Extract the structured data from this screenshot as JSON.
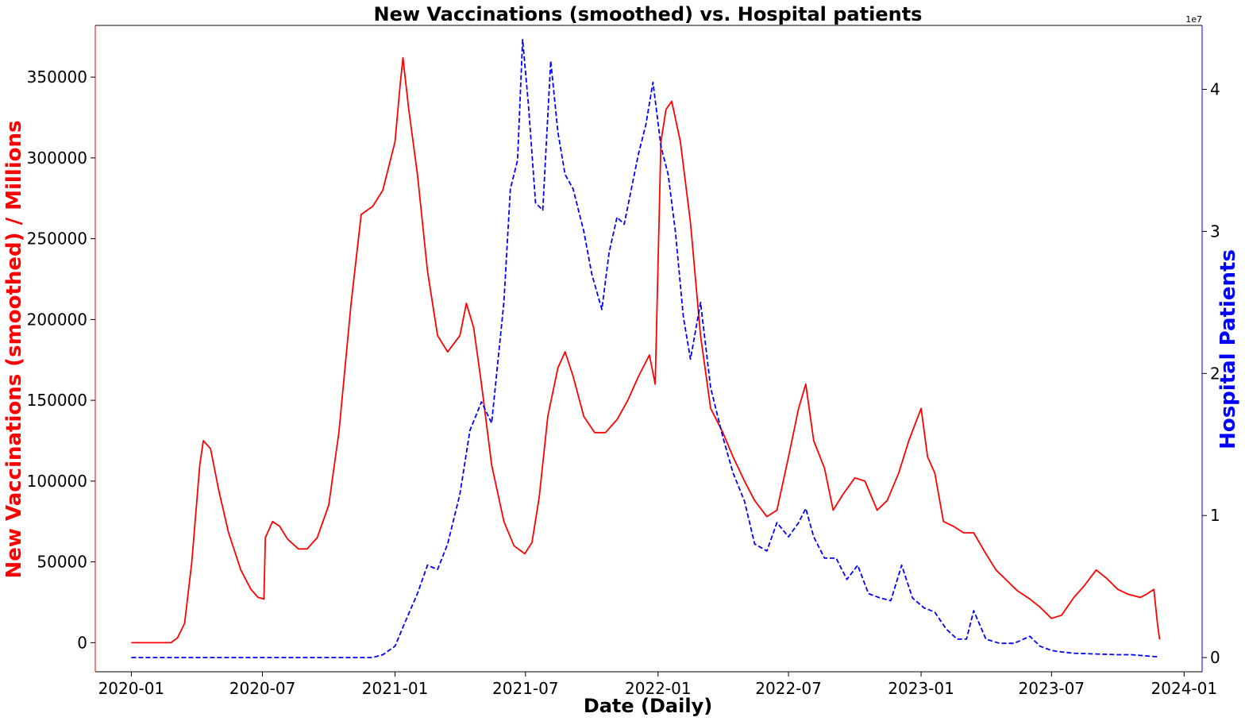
{
  "chart_data": {
    "type": "line",
    "title": "New Vaccinations (smoothed) vs. Hospital patients",
    "xlabel": "Date (Daily)",
    "ylabel_left": "New Vaccinations (smoothed) / Millions",
    "ylabel_right": "Hospital Patients",
    "right_axis_offset": "1e7",
    "colors": {
      "left": "#ff0000",
      "right": "#0000ff"
    },
    "x_ticks": [
      "2020-01",
      "2020-07",
      "2021-01",
      "2021-07",
      "2022-01",
      "2022-07",
      "2023-01",
      "2023-07",
      "2024-01"
    ],
    "y_left_ticks": [
      "0",
      "50000",
      "100000",
      "150000",
      "200000",
      "250000",
      "300000",
      "350000"
    ],
    "y_right_ticks": [
      "0",
      "1",
      "2",
      "3",
      "4"
    ],
    "xlim": [
      "2019-11-12",
      "2024-01-26"
    ],
    "ylim_left": [
      -18000,
      382000
    ],
    "ylim_right": [
      -1000000.0,
      44500000.0
    ],
    "grid": false,
    "series": [
      {
        "name": "New Vaccinations (smoothed)",
        "axis": "left",
        "style": "solid",
        "x": [
          "2020-01-01",
          "2020-02-25",
          "2020-03-05",
          "2020-03-15",
          "2020-03-25",
          "2020-04-05",
          "2020-04-10",
          "2020-04-20",
          "2020-05-01",
          "2020-05-15",
          "2020-06-01",
          "2020-06-15",
          "2020-06-25",
          "2020-07-03",
          "2020-07-05",
          "2020-07-15",
          "2020-07-25",
          "2020-08-05",
          "2020-08-20",
          "2020-09-01",
          "2020-09-15",
          "2020-10-01",
          "2020-10-15",
          "2020-11-01",
          "2020-11-15",
          "2020-12-01",
          "2020-12-15",
          "2021-01-01",
          "2021-01-08",
          "2021-01-12",
          "2021-01-20",
          "2021-02-01",
          "2021-02-15",
          "2021-03-01",
          "2021-03-15",
          "2021-04-01",
          "2021-04-10",
          "2021-04-20",
          "2021-05-01",
          "2021-05-15",
          "2021-06-01",
          "2021-06-15",
          "2021-06-30",
          "2021-07-10",
          "2021-07-20",
          "2021-08-01",
          "2021-08-15",
          "2021-08-25",
          "2021-09-05",
          "2021-09-20",
          "2021-10-05",
          "2021-10-20",
          "2021-11-05",
          "2021-11-20",
          "2021-12-05",
          "2021-12-20",
          "2021-12-28",
          "2022-01-05",
          "2022-01-12",
          "2022-01-20",
          "2022-02-01",
          "2022-02-15",
          "2022-03-01",
          "2022-03-15",
          "2022-04-01",
          "2022-04-15",
          "2022-05-01",
          "2022-05-15",
          "2022-06-01",
          "2022-06-15",
          "2022-07-01",
          "2022-07-15",
          "2022-07-25",
          "2022-08-05",
          "2022-08-20",
          "2022-09-01",
          "2022-09-15",
          "2022-10-01",
          "2022-10-15",
          "2022-11-01",
          "2022-11-15",
          "2022-12-01",
          "2022-12-15",
          "2023-01-01",
          "2023-01-10",
          "2023-01-20",
          "2023-02-01",
          "2023-02-15",
          "2023-03-01",
          "2023-03-15",
          "2023-04-01",
          "2023-04-15",
          "2023-05-01",
          "2023-05-15",
          "2023-06-01",
          "2023-06-15",
          "2023-07-01",
          "2023-07-15",
          "2023-08-01",
          "2023-08-15",
          "2023-09-01",
          "2023-09-15",
          "2023-10-01",
          "2023-10-15",
          "2023-11-01",
          "2023-11-10",
          "2023-11-20",
          "2023-11-25",
          "2023-11-28"
        ],
        "values": [
          0,
          0,
          3000,
          12000,
          50000,
          110000,
          125000,
          120000,
          95000,
          68000,
          45000,
          33000,
          28000,
          27000,
          65000,
          75000,
          72000,
          64000,
          58000,
          58000,
          65000,
          85000,
          130000,
          210000,
          265000,
          270000,
          280000,
          310000,
          345000,
          362000,
          330000,
          290000,
          230000,
          190000,
          180000,
          190000,
          210000,
          195000,
          160000,
          110000,
          75000,
          60000,
          55000,
          62000,
          90000,
          140000,
          170000,
          180000,
          165000,
          140000,
          130000,
          130000,
          138000,
          150000,
          165000,
          178000,
          160000,
          310000,
          330000,
          335000,
          310000,
          260000,
          190000,
          145000,
          130000,
          115000,
          100000,
          88000,
          78000,
          82000,
          115000,
          145000,
          160000,
          125000,
          108000,
          82000,
          92000,
          102000,
          100000,
          82000,
          88000,
          105000,
          125000,
          145000,
          115000,
          105000,
          75000,
          72000,
          68000,
          68000,
          55000,
          45000,
          38000,
          32000,
          27000,
          22000,
          15000,
          17000,
          28000,
          35000,
          45000,
          40000,
          33000,
          30000,
          28000,
          30000,
          33000,
          12000,
          2000
        ]
      },
      {
        "name": "Hospital Patients",
        "axis": "right",
        "style": "dashed",
        "x": [
          "2020-01-01",
          "2020-12-01",
          "2020-12-15",
          "2021-01-01",
          "2021-01-15",
          "2021-02-01",
          "2021-02-15",
          "2021-03-01",
          "2021-03-15",
          "2021-04-01",
          "2021-04-15",
          "2021-05-01",
          "2021-05-15",
          "2021-06-01",
          "2021-06-10",
          "2021-06-20",
          "2021-06-27",
          "2021-07-05",
          "2021-07-15",
          "2021-07-25",
          "2021-08-05",
          "2021-08-15",
          "2021-08-25",
          "2021-09-05",
          "2021-09-20",
          "2021-10-01",
          "2021-10-15",
          "2021-10-25",
          "2021-11-05",
          "2021-11-15",
          "2021-11-25",
          "2021-12-05",
          "2021-12-15",
          "2021-12-25",
          "2022-01-05",
          "2022-01-15",
          "2022-01-25",
          "2022-02-05",
          "2022-02-15",
          "2022-03-01",
          "2022-03-15",
          "2022-04-01",
          "2022-04-15",
          "2022-05-01",
          "2022-05-15",
          "2022-06-01",
          "2022-06-15",
          "2022-07-01",
          "2022-07-15",
          "2022-07-25",
          "2022-08-05",
          "2022-08-20",
          "2022-09-05",
          "2022-09-20",
          "2022-10-05",
          "2022-10-20",
          "2022-11-05",
          "2022-11-20",
          "2022-12-05",
          "2022-12-20",
          "2023-01-05",
          "2023-01-20",
          "2023-02-05",
          "2023-02-20",
          "2023-03-05",
          "2023-03-15",
          "2023-04-01",
          "2023-04-20",
          "2023-05-10",
          "2023-06-01",
          "2023-06-15",
          "2023-07-01",
          "2023-07-15",
          "2023-08-01",
          "2023-09-01",
          "2023-10-01",
          "2023-10-20",
          "2023-11-01",
          "2023-11-25"
        ],
        "values": [
          0,
          0,
          200000,
          800000,
          2500000,
          4500000,
          6500000,
          6200000,
          8000000,
          11500000,
          16000000,
          18000000,
          16500000,
          25000000,
          33000000,
          35000000,
          43500000,
          39000000,
          32000000,
          31500000,
          42000000,
          37000000,
          34000000,
          33000000,
          30000000,
          27000000,
          24500000,
          28500000,
          31000000,
          30500000,
          33000000,
          35500000,
          37500000,
          40500000,
          36000000,
          34000000,
          30000000,
          24000000,
          21000000,
          25000000,
          19000000,
          15500000,
          13000000,
          11000000,
          8000000,
          7500000,
          9500000,
          8500000,
          9500000,
          10500000,
          8500000,
          7000000,
          7000000,
          5500000,
          6500000,
          4500000,
          4200000,
          4000000,
          6500000,
          4200000,
          3500000,
          3200000,
          2000000,
          1300000,
          1300000,
          3300000,
          1300000,
          1000000,
          1000000,
          1500000,
          800000,
          500000,
          400000,
          300000,
          250000,
          200000,
          200000,
          150000,
          50000
        ]
      }
    ]
  }
}
